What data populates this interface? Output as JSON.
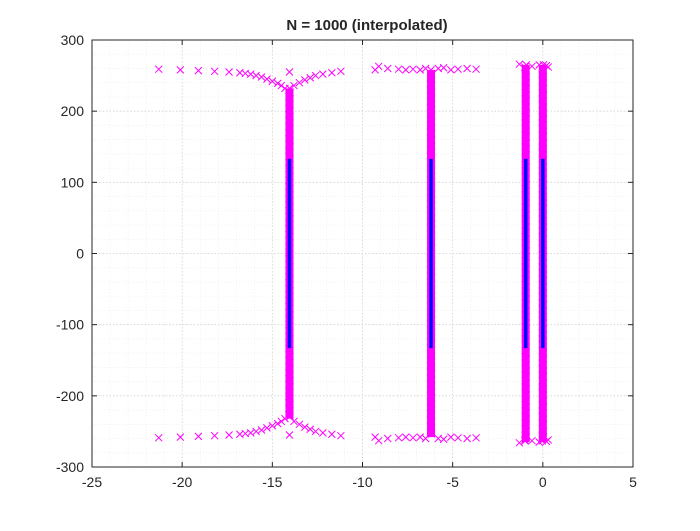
{
  "chart_data": {
    "type": "scatter",
    "title": "N = 1000 (interpolated)",
    "xlabel": "",
    "ylabel": "",
    "xlim": [
      -25,
      5
    ],
    "ylim": [
      -300,
      300
    ],
    "x_ticks": [
      -25,
      -20,
      -15,
      -10,
      -5,
      0,
      5
    ],
    "y_ticks": [
      -300,
      -200,
      -100,
      0,
      100,
      200,
      300
    ],
    "x_tick_labels": [
      "-25",
      "-20",
      "-15",
      "-10",
      "-5",
      "0",
      "5"
    ],
    "y_tick_labels": [
      "-300",
      "-200",
      "-100",
      "0",
      "100",
      "200",
      "300"
    ],
    "grid": "major and minor, dotted",
    "legend": "none",
    "colors": {
      "marker": "#ff00ff",
      "line": "#0000ff",
      "axis": "#262626",
      "grid": "#dcdcdc"
    },
    "series": [
      {
        "marker": "x",
        "color": "#ff00ff",
        "points": [
          [
            -21.3,
            259
          ],
          [
            -20.1,
            258
          ],
          [
            -19.1,
            257
          ],
          [
            -18.2,
            256
          ],
          [
            -17.4,
            255
          ],
          [
            -16.8,
            254
          ],
          [
            -16.5,
            253
          ],
          [
            -16.2,
            252
          ],
          [
            -15.9,
            250
          ],
          [
            -15.6,
            248
          ],
          [
            -15.3,
            245
          ],
          [
            -15.0,
            242
          ],
          [
            -14.7,
            239
          ],
          [
            -14.5,
            236
          ],
          [
            -14.3,
            232
          ],
          [
            -13.8,
            236
          ],
          [
            -13.5,
            240
          ],
          [
            -13.2,
            244
          ],
          [
            -12.9,
            247
          ],
          [
            -12.6,
            250
          ],
          [
            -12.2,
            252
          ],
          [
            -11.7,
            254
          ],
          [
            -11.2,
            256
          ],
          [
            -14.05,
            255
          ],
          [
            -9.3,
            258
          ],
          [
            -9.1,
            263
          ],
          [
            -8.6,
            260
          ],
          [
            -8.0,
            259
          ],
          [
            -7.6,
            258
          ],
          [
            -7.2,
            259
          ],
          [
            -6.8,
            258
          ],
          [
            -6.5,
            260
          ],
          [
            -5.8,
            260
          ],
          [
            -5.5,
            261
          ],
          [
            -5.1,
            258
          ],
          [
            -4.7,
            259
          ],
          [
            -4.2,
            260
          ],
          [
            -3.7,
            259
          ],
          [
            -1.3,
            266
          ],
          [
            -1.0,
            262
          ],
          [
            -0.6,
            263
          ],
          [
            -0.2,
            265
          ],
          [
            0.2,
            264
          ],
          [
            0.3,
            262
          ],
          [
            -21.3,
            -259
          ],
          [
            -20.1,
            -258
          ],
          [
            -19.1,
            -257
          ],
          [
            -18.2,
            -256
          ],
          [
            -17.4,
            -255
          ],
          [
            -16.8,
            -254
          ],
          [
            -16.5,
            -253
          ],
          [
            -16.2,
            -252
          ],
          [
            -15.9,
            -250
          ],
          [
            -15.6,
            -248
          ],
          [
            -15.3,
            -245
          ],
          [
            -15.0,
            -242
          ],
          [
            -14.7,
            -239
          ],
          [
            -14.5,
            -236
          ],
          [
            -14.3,
            -232
          ],
          [
            -13.8,
            -236
          ],
          [
            -13.5,
            -240
          ],
          [
            -13.2,
            -244
          ],
          [
            -12.9,
            -247
          ],
          [
            -12.6,
            -250
          ],
          [
            -12.2,
            -252
          ],
          [
            -11.7,
            -254
          ],
          [
            -11.2,
            -256
          ],
          [
            -14.05,
            -255
          ],
          [
            -9.3,
            -258
          ],
          [
            -9.1,
            -263
          ],
          [
            -8.6,
            -260
          ],
          [
            -8.0,
            -259
          ],
          [
            -7.6,
            -258
          ],
          [
            -7.2,
            -259
          ],
          [
            -6.8,
            -258
          ],
          [
            -6.5,
            -260
          ],
          [
            -5.8,
            -260
          ],
          [
            -5.5,
            -261
          ],
          [
            -5.1,
            -258
          ],
          [
            -4.7,
            -259
          ],
          [
            -4.2,
            -260
          ],
          [
            -3.7,
            -259
          ],
          [
            -1.3,
            -266
          ],
          [
            -1.0,
            -262
          ],
          [
            -0.6,
            -263
          ],
          [
            -0.2,
            -265
          ],
          [
            0.2,
            -264
          ],
          [
            0.3,
            -262
          ]
        ],
        "dense_columns": [
          {
            "x": -14.05,
            "y_range": [
              -232,
              232
            ]
          },
          {
            "x": -6.2,
            "y_range": [
              -258,
              258
            ]
          },
          {
            "x": -0.95,
            "y_range": [
              -265,
              265
            ]
          },
          {
            "x": 0.0,
            "y_range": [
              -265,
              265
            ]
          }
        ]
      },
      {
        "marker": "line",
        "color": "#0000ff",
        "segments": [
          {
            "x": -14.05,
            "y": [
              -133,
              133
            ]
          },
          {
            "x": -6.2,
            "y": [
              -133,
              133
            ]
          },
          {
            "x": -0.95,
            "y": [
              -133,
              133
            ]
          },
          {
            "x": 0.0,
            "y": [
              -133,
              133
            ]
          }
        ]
      }
    ]
  }
}
